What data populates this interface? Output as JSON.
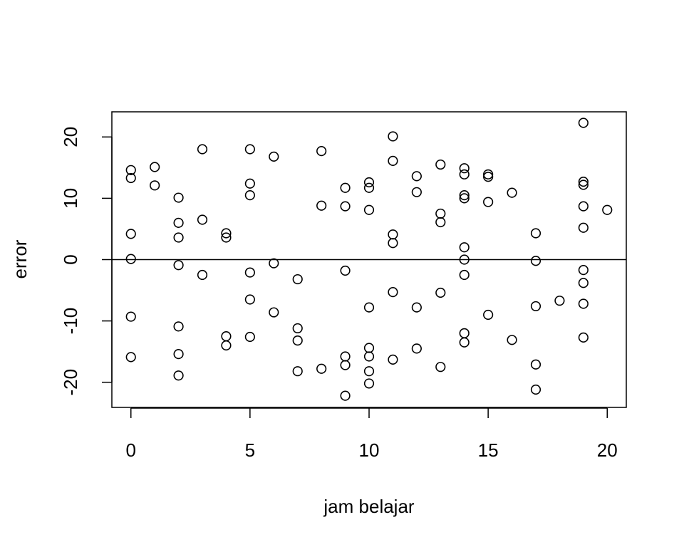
{
  "chart_data": {
    "type": "scatter",
    "title": "",
    "xlabel": "jam belajar",
    "ylabel": "error",
    "xlim": [
      -0.8,
      20.8
    ],
    "ylim": [
      -24.1,
      24.1
    ],
    "xticks": [
      0,
      5,
      10,
      15,
      20
    ],
    "yticks": [
      -20,
      -10,
      0,
      10,
      20
    ],
    "reference_line_y": 0,
    "grid": false,
    "legend": "none",
    "marker": "open-circle",
    "points": [
      {
        "x": 0,
        "y": 14.6
      },
      {
        "x": 0,
        "y": 13.3
      },
      {
        "x": 0,
        "y": 4.2
      },
      {
        "x": 0,
        "y": 0.1
      },
      {
        "x": 0,
        "y": -9.3
      },
      {
        "x": 0,
        "y": -15.9
      },
      {
        "x": 1,
        "y": 15.1
      },
      {
        "x": 1,
        "y": 12.1
      },
      {
        "x": 2,
        "y": 10.1
      },
      {
        "x": 2,
        "y": 6.0
      },
      {
        "x": 2,
        "y": 3.6
      },
      {
        "x": 2,
        "y": -0.9
      },
      {
        "x": 2,
        "y": -10.9
      },
      {
        "x": 2,
        "y": -15.4
      },
      {
        "x": 2,
        "y": -18.9
      },
      {
        "x": 3,
        "y": 18.0
      },
      {
        "x": 3,
        "y": 6.5
      },
      {
        "x": 3,
        "y": -2.5
      },
      {
        "x": 4,
        "y": 4.3
      },
      {
        "x": 4,
        "y": 3.6
      },
      {
        "x": 4,
        "y": -12.5
      },
      {
        "x": 4,
        "y": -14.0
      },
      {
        "x": 5,
        "y": 18.0
      },
      {
        "x": 5,
        "y": 12.4
      },
      {
        "x": 5,
        "y": 10.5
      },
      {
        "x": 5,
        "y": -2.1
      },
      {
        "x": 5,
        "y": -6.5
      },
      {
        "x": 5,
        "y": -12.6
      },
      {
        "x": 6,
        "y": 16.8
      },
      {
        "x": 6,
        "y": -0.6
      },
      {
        "x": 6,
        "y": -8.6
      },
      {
        "x": 7,
        "y": -3.2
      },
      {
        "x": 7,
        "y": -11.2
      },
      {
        "x": 7,
        "y": -13.2
      },
      {
        "x": 7,
        "y": -18.2
      },
      {
        "x": 8,
        "y": 17.7
      },
      {
        "x": 8,
        "y": 8.8
      },
      {
        "x": 8,
        "y": -17.8
      },
      {
        "x": 9,
        "y": 11.7
      },
      {
        "x": 9,
        "y": 8.7
      },
      {
        "x": 9,
        "y": -1.8
      },
      {
        "x": 9,
        "y": -15.8
      },
      {
        "x": 9,
        "y": -17.2
      },
      {
        "x": 9,
        "y": -22.2
      },
      {
        "x": 10,
        "y": 12.6
      },
      {
        "x": 10,
        "y": 11.7
      },
      {
        "x": 10,
        "y": 8.1
      },
      {
        "x": 10,
        "y": -7.8
      },
      {
        "x": 10,
        "y": -14.4
      },
      {
        "x": 10,
        "y": -15.8
      },
      {
        "x": 10,
        "y": -18.2
      },
      {
        "x": 10,
        "y": -20.2
      },
      {
        "x": 11,
        "y": 20.1
      },
      {
        "x": 11,
        "y": 16.1
      },
      {
        "x": 11,
        "y": 4.1
      },
      {
        "x": 11,
        "y": 2.7
      },
      {
        "x": 11,
        "y": -5.3
      },
      {
        "x": 11,
        "y": -16.3
      },
      {
        "x": 12,
        "y": 13.6
      },
      {
        "x": 12,
        "y": 11.0
      },
      {
        "x": 12,
        "y": -7.8
      },
      {
        "x": 12,
        "y": -14.5
      },
      {
        "x": 13,
        "y": 15.5
      },
      {
        "x": 13,
        "y": 7.5
      },
      {
        "x": 13,
        "y": 6.1
      },
      {
        "x": 13,
        "y": -5.4
      },
      {
        "x": 13,
        "y": -17.5
      },
      {
        "x": 14,
        "y": 14.9
      },
      {
        "x": 14,
        "y": 13.9
      },
      {
        "x": 14,
        "y": 10.5
      },
      {
        "x": 14,
        "y": 10.0
      },
      {
        "x": 14,
        "y": 2.0
      },
      {
        "x": 14,
        "y": 0.0
      },
      {
        "x": 14,
        "y": -2.5
      },
      {
        "x": 14,
        "y": -12.0
      },
      {
        "x": 14,
        "y": -13.5
      },
      {
        "x": 15,
        "y": 13.9
      },
      {
        "x": 15,
        "y": 13.5
      },
      {
        "x": 15,
        "y": 9.4
      },
      {
        "x": 15,
        "y": -9.0
      },
      {
        "x": 16,
        "y": 10.9
      },
      {
        "x": 16,
        "y": -13.1
      },
      {
        "x": 17,
        "y": 4.3
      },
      {
        "x": 17,
        "y": -0.2
      },
      {
        "x": 17,
        "y": -7.6
      },
      {
        "x": 17,
        "y": -17.1
      },
      {
        "x": 17,
        "y": -21.2
      },
      {
        "x": 18,
        "y": -6.7
      },
      {
        "x": 19,
        "y": 22.3
      },
      {
        "x": 19,
        "y": 12.7
      },
      {
        "x": 19,
        "y": 12.2
      },
      {
        "x": 19,
        "y": 8.7
      },
      {
        "x": 19,
        "y": 5.2
      },
      {
        "x": 19,
        "y": -1.7
      },
      {
        "x": 19,
        "y": -3.8
      },
      {
        "x": 19,
        "y": -7.2
      },
      {
        "x": 19,
        "y": -12.7
      },
      {
        "x": 20,
        "y": 8.1
      }
    ]
  }
}
